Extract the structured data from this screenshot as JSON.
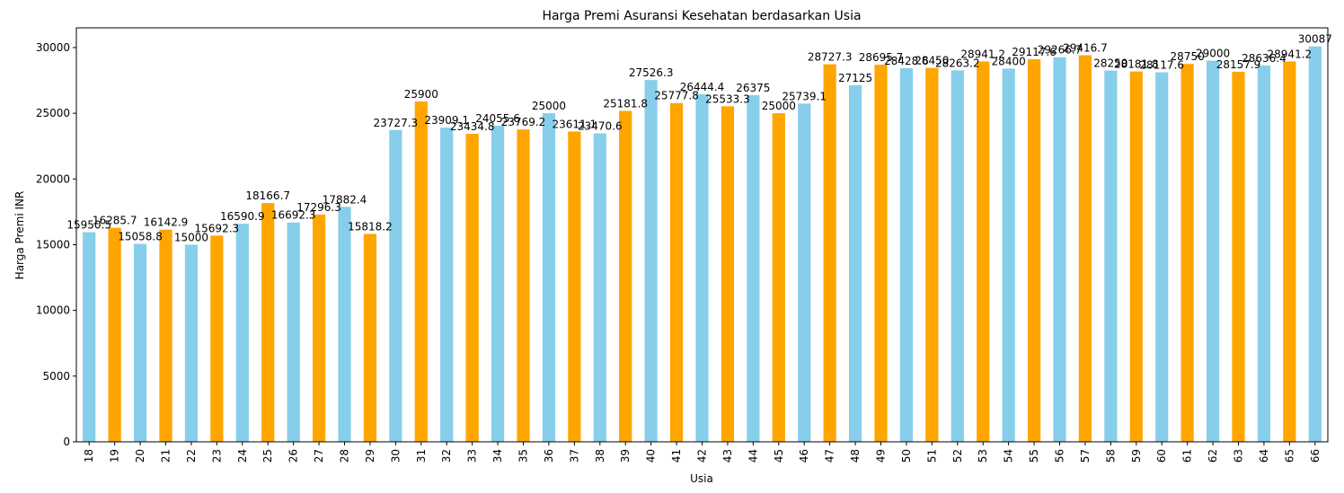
{
  "chart_data": {
    "type": "bar",
    "title": "Harga Premi Asuransi Kesehatan berdasarkan Usia",
    "xlabel": "Usia",
    "ylabel": "Harga Premi INR",
    "ylim": [
      0,
      31500
    ],
    "yticks": [
      0,
      5000,
      10000,
      15000,
      20000,
      25000,
      30000
    ],
    "grid": false,
    "legend": "none",
    "colors": [
      "#87CEEB",
      "#FFA500"
    ],
    "categories": [
      "18",
      "19",
      "20",
      "21",
      "22",
      "23",
      "24",
      "25",
      "26",
      "27",
      "28",
      "29",
      "30",
      "31",
      "32",
      "33",
      "34",
      "35",
      "36",
      "37",
      "38",
      "39",
      "40",
      "41",
      "42",
      "43",
      "44",
      "45",
      "46",
      "47",
      "48",
      "49",
      "50",
      "51",
      "52",
      "53",
      "54",
      "55",
      "56",
      "57",
      "58",
      "59",
      "60",
      "61",
      "62",
      "63",
      "64",
      "65",
      "66"
    ],
    "values": [
      15950.5,
      16285.7,
      15058.8,
      16142.9,
      15000,
      15692.3,
      16590.9,
      18166.7,
      16692.3,
      17296.3,
      17882.4,
      15818.2,
      23727.3,
      25900,
      23909.1,
      23434.8,
      24055.6,
      23769.2,
      25000,
      23611.1,
      23470.6,
      25181.8,
      27526.3,
      25777.8,
      26444.4,
      25533.3,
      26375,
      25000,
      25739.1,
      28727.3,
      27125,
      28695.7,
      28428.6,
      28450,
      28263.2,
      28941.2,
      28400,
      29117.6,
      29266.7,
      29416.7,
      28250,
      28181.8,
      28117.6,
      28750,
      29000,
      28157.9,
      28636.4,
      28941.2,
      30087
    ],
    "value_labels": [
      "15950.5",
      "16285.7",
      "15058.8",
      "16142.9",
      "15000",
      "15692.3",
      "16590.9",
      "18166.7",
      "16692.3",
      "17296.3",
      "17882.4",
      "15818.2",
      "23727.3",
      "25900",
      "23909.1",
      "23434.8",
      "24055.6",
      "23769.2",
      "25000",
      "23611.1",
      "23470.6",
      "25181.8",
      "27526.3",
      "25777.8",
      "26444.4",
      "25533.3",
      "26375",
      "25000",
      "25739.1",
      "28727.3",
      "27125",
      "28695.7",
      "28428.6",
      "28450",
      "28263.2",
      "28941.2",
      "28400",
      "29117.6",
      "29266.7",
      "29416.7",
      "28250",
      "28181.8",
      "28117.6",
      "28750",
      "29000",
      "28157.9",
      "28636.4",
      "28941.2",
      "30087"
    ]
  }
}
